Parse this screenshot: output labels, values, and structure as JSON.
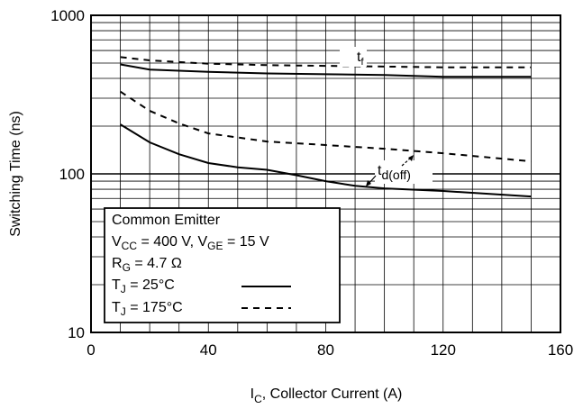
{
  "chart_data": {
    "type": "line",
    "x_label": {
      "main": "I",
      "sub": "C",
      "rest": ", Collector Current (A)"
    },
    "y_label": "Switching Time (ns)",
    "x_ticks": [
      "0",
      "40",
      "80",
      "120",
      "160"
    ],
    "y_ticks": [
      "10",
      "100",
      "1000"
    ],
    "xlim": [
      0,
      160
    ],
    "ylim": [
      10,
      1000
    ],
    "y_scale": "log",
    "grid": true,
    "series": [
      {
        "key": "tf_25",
        "style": "solid",
        "x": [
          10,
          20,
          40,
          60,
          80,
          100,
          120,
          150
        ],
        "y": [
          490,
          455,
          440,
          430,
          425,
          420,
          410,
          410
        ]
      },
      {
        "key": "tf_175",
        "style": "dashed",
        "x": [
          10,
          20,
          40,
          60,
          80,
          100,
          120,
          150
        ],
        "y": [
          545,
          520,
          495,
          485,
          480,
          475,
          470,
          470
        ]
      },
      {
        "key": "td_25",
        "style": "solid",
        "x": [
          10,
          20,
          30,
          40,
          50,
          60,
          70,
          80,
          90,
          100,
          120,
          150
        ],
        "y": [
          205,
          158,
          133,
          117,
          110,
          106,
          98,
          90,
          84,
          81,
          78,
          72
        ]
      },
      {
        "key": "td_175",
        "style": "dashed",
        "x": [
          10,
          20,
          30,
          40,
          60,
          80,
          100,
          120,
          150
        ],
        "y": [
          330,
          250,
          208,
          180,
          160,
          152,
          144,
          135,
          120
        ]
      }
    ],
    "annotations": [
      {
        "name": "tf-annotation",
        "main": "t",
        "sub": "f"
      },
      {
        "name": "tdoff-annotation",
        "main": "t",
        "sub": "d(off)"
      }
    ],
    "legend": {
      "placement": "bottom-left",
      "title": "Common Emitter",
      "cond1": {
        "a": "V",
        "a_sub": "CC",
        "b": " = 400 V, V",
        "b_sub": "GE",
        "c": " = 15 V"
      },
      "cond2": {
        "a": "R",
        "a_sub": "G",
        "b": " = 4.7 Ω"
      },
      "entries": [
        {
          "a": "T",
          "a_sub": "J",
          "b": " = 25°C",
          "style": "solid"
        },
        {
          "a": "T",
          "a_sub": "J",
          "b": " = 175°C",
          "style": "dashed"
        }
      ]
    }
  }
}
